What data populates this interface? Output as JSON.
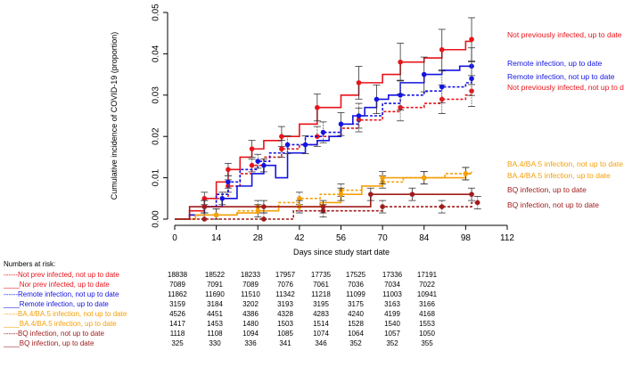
{
  "chart_data": {
    "type": "line",
    "xlabel": "Days since study start date",
    "ylabel": "Cumulative incidence of COVID-19 (proportion)",
    "xlim": [
      0,
      112
    ],
    "ylim": [
      0,
      0.05
    ],
    "x_ticks": [
      0,
      14,
      28,
      42,
      56,
      70,
      84,
      98,
      112
    ],
    "y_ticks": [
      "0.00",
      "0.01",
      "0.02",
      "0.03",
      "0.04",
      "0.05"
    ],
    "series": [
      {
        "name": "Not previously infected, up to date",
        "color": "#e8141b",
        "dash": false,
        "end_label": "Not previously infected, up to date",
        "x": [
          0,
          5,
          10,
          14,
          18,
          22,
          26,
          30,
          36,
          42,
          48,
          56,
          62,
          70,
          76,
          84,
          90,
          98,
          100
        ],
        "y": [
          0,
          0.002,
          0.005,
          0.009,
          0.012,
          0.015,
          0.017,
          0.019,
          0.02,
          0.023,
          0.027,
          0.03,
          0.033,
          0.035,
          0.038,
          0.039,
          0.041,
          0.043,
          0.0435
        ]
      },
      {
        "name": "Nor prev infected, not up to date",
        "color": "#e8141b",
        "dash": true,
        "end_label": "Not previously infected, not up to date",
        "x": [
          0,
          5,
          10,
          14,
          18,
          22,
          26,
          30,
          36,
          42,
          48,
          56,
          62,
          70,
          76,
          84,
          90,
          98,
          100
        ],
        "y": [
          0,
          0.001,
          0.003,
          0.005,
          0.008,
          0.011,
          0.013,
          0.015,
          0.017,
          0.018,
          0.02,
          0.022,
          0.024,
          0.026,
          0.027,
          0.028,
          0.029,
          0.03,
          0.031
        ]
      },
      {
        "name": "Remote infection, up to date",
        "color": "#1414e0",
        "dash": false,
        "end_label": "Remote infection, up to date",
        "x": [
          0,
          5,
          10,
          16,
          21,
          26,
          30,
          34,
          38,
          44,
          48,
          52,
          56,
          60,
          64,
          68,
          72,
          76,
          84,
          90,
          96,
          100
        ],
        "y": [
          0,
          0.001,
          0.003,
          0.005,
          0.008,
          0.011,
          0.013,
          0.01,
          0.016,
          0.018,
          0.019,
          0.02,
          0.023,
          0.025,
          0.027,
          0.029,
          0.03,
          0.033,
          0.035,
          0.036,
          0.037,
          0.037
        ]
      },
      {
        "name": "Remote infection, not up to date",
        "color": "#1414e0",
        "dash": true,
        "end_label": "Remote infection, not up to date",
        "x": [
          0,
          5,
          10,
          14,
          18,
          22,
          28,
          32,
          38,
          44,
          50,
          56,
          62,
          70,
          76,
          84,
          90,
          98,
          100
        ],
        "y": [
          0,
          0.001,
          0.003,
          0.006,
          0.009,
          0.012,
          0.014,
          0.016,
          0.018,
          0.02,
          0.021,
          0.023,
          0.025,
          0.028,
          0.03,
          0.031,
          0.032,
          0.033,
          0.034
        ]
      },
      {
        "name": "BA.4/BA.5 infection, not up to date",
        "color": "#f5a00a",
        "dash": true,
        "end_label": "BA.4/BA.5 infection, not up to date",
        "x": [
          0,
          7,
          14,
          21,
          28,
          35,
          42,
          49,
          56,
          63,
          70,
          77,
          84,
          91,
          98,
          100
        ],
        "y": [
          0,
          0.001,
          0.001,
          0.002,
          0.003,
          0.004,
          0.005,
          0.006,
          0.007,
          0.008,
          0.009,
          0.01,
          0.01,
          0.011,
          0.011,
          0.0115
        ]
      },
      {
        "name": "BA.4/BA.5 infection, up to date",
        "color": "#f5a00a",
        "dash": false,
        "end_label": "BA.4/BA.5 infection, up to date",
        "x": [
          0,
          7,
          14,
          21,
          28,
          35,
          42,
          49,
          56,
          63,
          70,
          77,
          84,
          91,
          98,
          100
        ],
        "y": [
          0,
          0.001,
          0.001,
          0.0015,
          0.002,
          0.003,
          0.003,
          0.004,
          0.006,
          0.008,
          0.01,
          0.01,
          0.01,
          0.01,
          0.011,
          0.011
        ]
      },
      {
        "name": "BQ infection, not up to date",
        "color": "#a01c1c",
        "dash": true,
        "end_label": "BQ infection, not up to date",
        "x": [
          0,
          5,
          10,
          20,
          30,
          40,
          50,
          60,
          70,
          80,
          90,
          100,
          102
        ],
        "y": [
          0,
          0,
          0,
          0,
          0,
          0.002,
          0.002,
          0.002,
          0.003,
          0.003,
          0.003,
          0.004,
          0.004
        ]
      },
      {
        "name": "BQ infection, up to date",
        "color": "#a01c1c",
        "dash": false,
        "end_label": "BQ infection, up to date",
        "x": [
          0,
          5,
          10,
          20,
          30,
          40,
          50,
          60,
          66,
          70,
          80,
          90,
          100
        ],
        "y": [
          0,
          0.003,
          0.003,
          0.003,
          0.003,
          0.003,
          0.003,
          0.003,
          0.006,
          0.006,
          0.006,
          0.006,
          0.006
        ]
      }
    ]
  },
  "risk_table": {
    "title": "Numbers at risk:",
    "rows": [
      {
        "label": "------Not prev infected, not up to date",
        "color": "#e8141b",
        "values": [
          "18838",
          "18522",
          "18233",
          "17957",
          "17735",
          "17525",
          "17336",
          "17191"
        ]
      },
      {
        "label": "____Nor prev infected, up to date",
        "color": "#e8141b",
        "values": [
          "7089",
          "7091",
          "7089",
          "7076",
          "7061",
          "7036",
          "7034",
          "7022"
        ]
      },
      {
        "label": "------Remote infection, not up to date",
        "color": "#1414e0",
        "values": [
          "11862",
          "11690",
          "11510",
          "11342",
          "11218",
          "11099",
          "11003",
          "10941"
        ]
      },
      {
        "label": "____Remote infection, up to date",
        "color": "#1414e0",
        "values": [
          "3159",
          "3184",
          "3202",
          "3193",
          "3195",
          "3175",
          "3163",
          "3166"
        ]
      },
      {
        "label": "------BA.4/BA.5 infection, not up to date",
        "color": "#f5a00a",
        "values": [
          "4526",
          "4451",
          "4386",
          "4328",
          "4283",
          "4240",
          "4199",
          "4168"
        ]
      },
      {
        "label": "____BA.4/BA.5 infection, up to date",
        "color": "#f5a00a",
        "values": [
          "1417",
          "1453",
          "1480",
          "1503",
          "1514",
          "1528",
          "1540",
          "1553"
        ]
      },
      {
        "label": "------BQ infection, not up to date",
        "color": "#a01c1c",
        "values": [
          "1118",
          "1108",
          "1094",
          "1085",
          "1074",
          "1064",
          "1057",
          "1050"
        ]
      },
      {
        "label": "____BQ infection, up to date",
        "color": "#a01c1c",
        "values": [
          "325",
          "330",
          "336",
          "341",
          "346",
          "352",
          "352",
          "355"
        ]
      }
    ]
  }
}
